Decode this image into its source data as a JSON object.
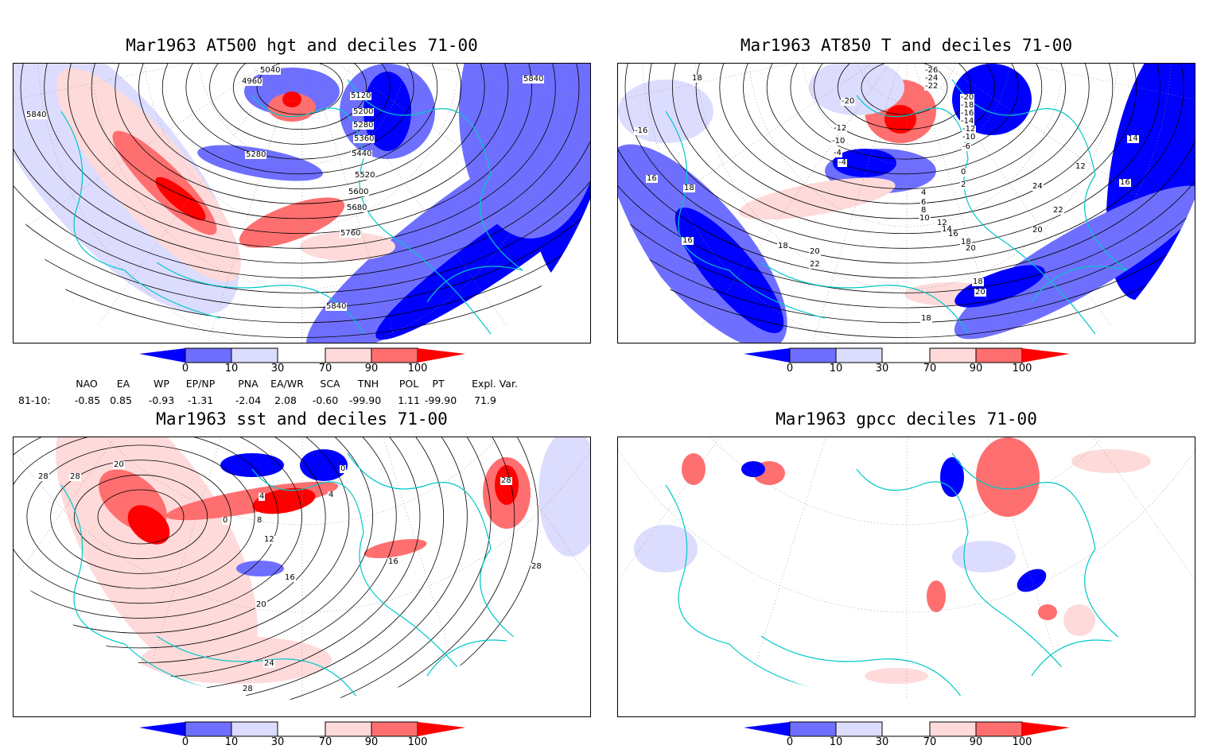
{
  "panels": [
    {
      "title": "Mar1963 AT500 hgt and deciles 71-00",
      "contour_labels": [
        "5040",
        "4960",
        "5120",
        "5200",
        "5280",
        "5360",
        "5440",
        "5280",
        "5520",
        "5600",
        "5680",
        "5760",
        "5840",
        "5840",
        "5840"
      ]
    },
    {
      "title": "Mar1963 AT850 T and deciles 71-00",
      "contour_labels": [
        "18",
        "-16",
        "16",
        "18",
        "16",
        "-26",
        "-24",
        "-22",
        "-20",
        "-18",
        "-16",
        "-14",
        "-12",
        "-10",
        "-6",
        "-4",
        "-20",
        "-12",
        "-10",
        "-4",
        "0",
        "2",
        "4",
        "6",
        "8",
        "10",
        "12",
        "14",
        "16",
        "18",
        "20",
        "22",
        "24",
        "18",
        "20",
        "16",
        "12",
        "14",
        "22",
        "20",
        "18",
        "20",
        "18"
      ]
    },
    {
      "title": "Mar1963 sst and deciles 71-00",
      "contour_labels": [
        "28",
        "28",
        "20",
        "0",
        "4",
        "8",
        "12",
        "16",
        "20",
        "24",
        "28",
        "28",
        "28",
        "4",
        "0",
        "16"
      ]
    },
    {
      "title": "Mar1963 gpcc deciles 71-00",
      "contour_labels": []
    }
  ],
  "colorbar": {
    "ticks": [
      "0",
      "10",
      "30",
      "70",
      "90",
      "100"
    ],
    "colors": [
      "#0000ff",
      "#6f6fff",
      "#dcdcff",
      "#ffffff",
      "#ffdada",
      "#ff6f6f",
      "#ff0000"
    ]
  },
  "indices": {
    "headers": [
      "NAO",
      "EA",
      "WP",
      "EP/NP",
      "PNA",
      "EA/WR",
      "SCA",
      "TNH",
      "POL",
      "PT",
      "Expl. Var."
    ],
    "row_label": "81-10:",
    "values": [
      "-0.85",
      "0.85",
      "-0.93",
      "-1.31",
      "-2.04",
      "2.08",
      "-0.60",
      "-99.90",
      "1.11",
      "-99.90",
      "71.9"
    ]
  },
  "colors": {
    "coast": "#00c8c8",
    "contour": "#000000"
  }
}
